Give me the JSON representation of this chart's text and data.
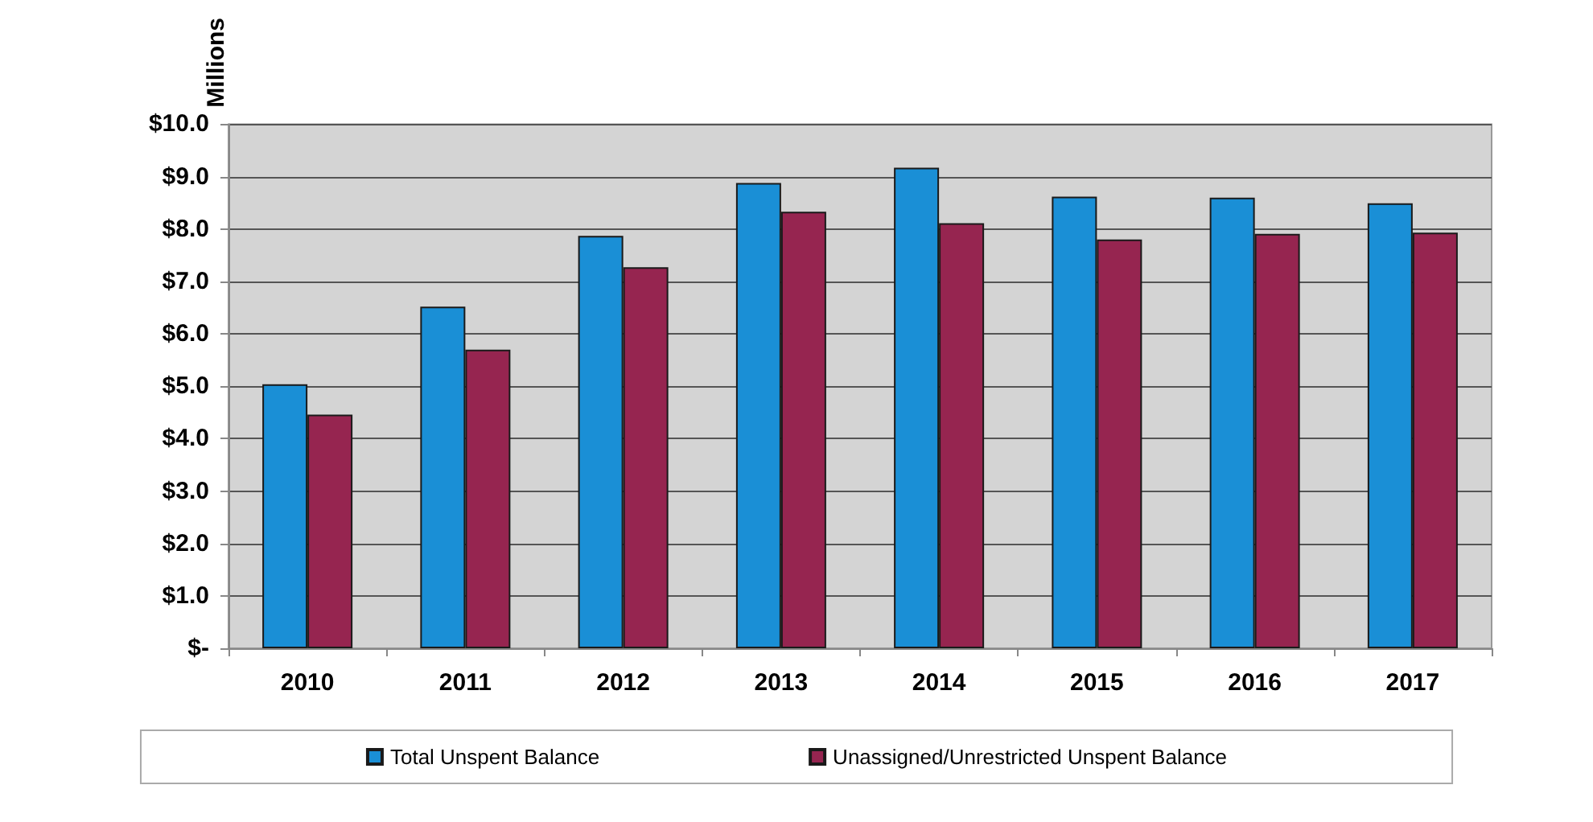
{
  "chart_data": {
    "type": "bar",
    "ylabel": "Millions",
    "categories": [
      "2010",
      "2011",
      "2012",
      "2013",
      "2014",
      "2015",
      "2016",
      "2017"
    ],
    "series": [
      {
        "name": "Total Unspent Balance",
        "color": "#1a8fd6",
        "values": [
          5.04,
          6.52,
          7.87,
          8.88,
          9.17,
          8.62,
          8.6,
          8.49
        ]
      },
      {
        "name": "Unassigned/Unrestricted Unspent Balance",
        "color": "#962550",
        "values": [
          4.46,
          5.7,
          7.27,
          8.33,
          8.11,
          7.8,
          7.91,
          7.93
        ]
      }
    ],
    "ylim": [
      0,
      10
    ],
    "yticks": [
      {
        "value": 0,
        "label": "$-"
      },
      {
        "value": 1,
        "label": "$1.0"
      },
      {
        "value": 2,
        "label": "$2.0"
      },
      {
        "value": 3,
        "label": "$3.0"
      },
      {
        "value": 4,
        "label": "$4.0"
      },
      {
        "value": 5,
        "label": "$5.0"
      },
      {
        "value": 6,
        "label": "$6.0"
      },
      {
        "value": 7,
        "label": "$7.0"
      },
      {
        "value": 8,
        "label": "$8.0"
      },
      {
        "value": 9,
        "label": "$9.0"
      },
      {
        "value": 10,
        "label": "$10.0"
      }
    ],
    "grid": "y",
    "legend": "bottom"
  }
}
